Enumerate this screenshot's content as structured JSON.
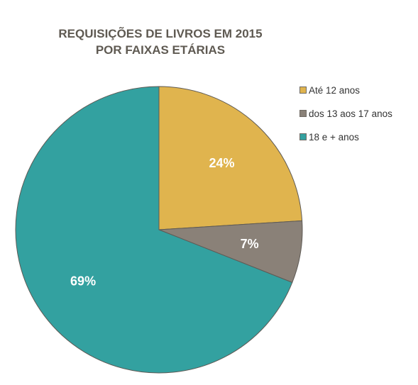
{
  "chart_data": {
    "type": "pie",
    "title_lines": [
      "REQUISIÇÕES DE LIVROS EM 2015",
      "POR FAIXAS ETÁRIAS"
    ],
    "categories": [
      "Até 12 anos",
      "dos 13 aos 17 anos",
      "18 e + anos"
    ],
    "values": [
      24,
      7,
      69
    ],
    "labels": [
      "24%",
      "7%",
      "69%"
    ],
    "unit": "%",
    "legend_position": "right",
    "colors": [
      "#e0b44e",
      "#8a8178",
      "#33a1a0"
    ],
    "start_angle_deg": 0,
    "direction": "clockwise"
  }
}
